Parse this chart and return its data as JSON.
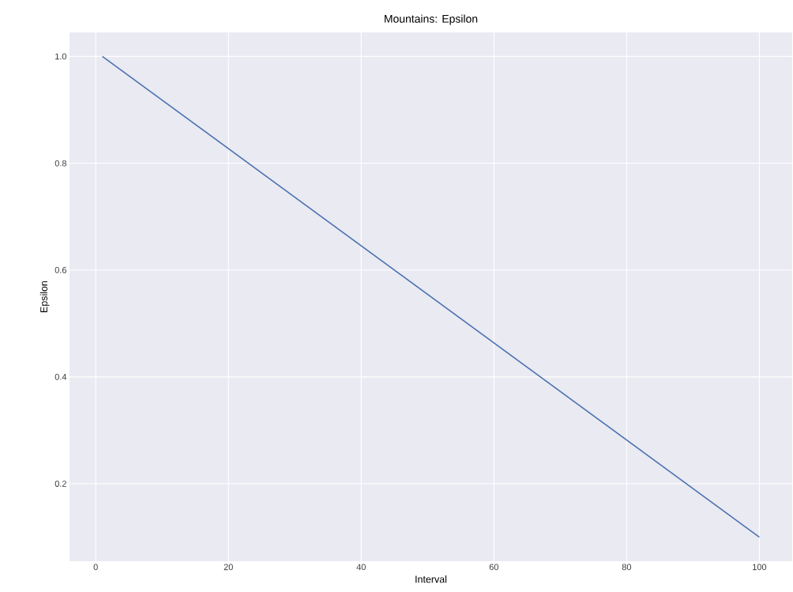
{
  "chart_data": {
    "type": "line",
    "title": "Mountains: Epsilon",
    "xlabel": "Interval",
    "ylabel": "Epsilon",
    "x": [
      1,
      100
    ],
    "series": [
      {
        "color": "#4c72b0",
        "values": [
          1.0,
          0.1
        ]
      }
    ],
    "xlim": [
      -3.95,
      104.95
    ],
    "ylim": [
      0.055,
      1.045
    ],
    "xticks": [
      0,
      20,
      40,
      60,
      80,
      100
    ],
    "yticks": [
      0.2,
      0.4,
      0.6,
      0.8,
      {
        "value": 1,
        "label": "1.0"
      }
    ],
    "grid": true,
    "marker": "none",
    "line_style": "solid"
  }
}
